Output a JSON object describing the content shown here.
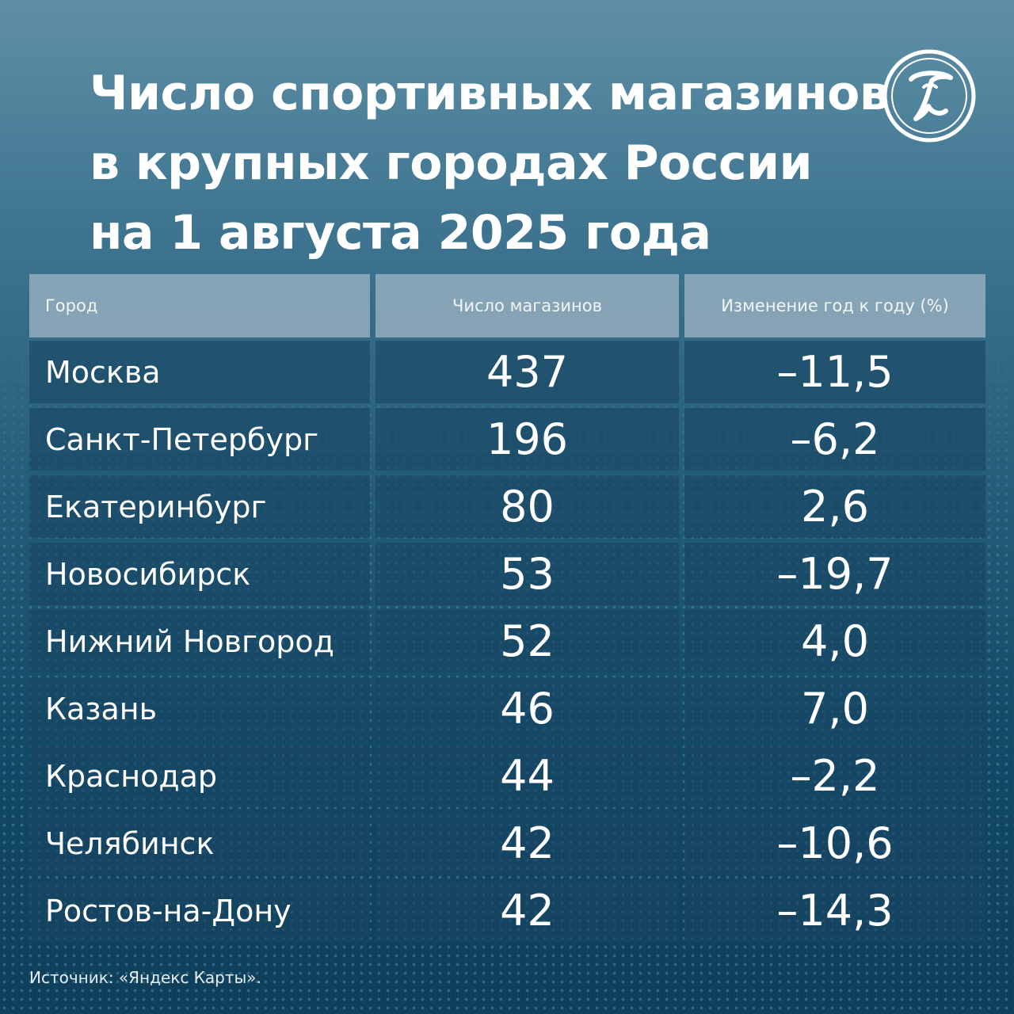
{
  "title_lines": [
    "Число спортивных магазинов",
    "в крупных городах России",
    "на 1 августа 2025 года"
  ],
  "source": "Источник: «Яндекс Карты».",
  "logo_icon": "publisher-logo-icon",
  "chart_data": {
    "type": "table",
    "title": "Число спортивных магазинов в крупных городах России на 1 августа 2025 года",
    "columns": [
      "Город",
      "Число магазинов",
      "Изменение год к году (%)"
    ],
    "rows": [
      {
        "city": "Москва",
        "count": "437",
        "change": "–11,5"
      },
      {
        "city": "Санкт-Петербург",
        "count": "196",
        "change": "–6,2"
      },
      {
        "city": "Екатеринбург",
        "count": "80",
        "change": "2,6"
      },
      {
        "city": "Новосибирск",
        "count": "53",
        "change": "–19,7"
      },
      {
        "city": "Нижний Новгород",
        "count": "52",
        "change": "4,0"
      },
      {
        "city": "Казань",
        "count": "46",
        "change": "7,0"
      },
      {
        "city": "Краснодар",
        "count": "44",
        "change": "–2,2"
      },
      {
        "city": "Челябинск",
        "count": "42",
        "change": "–10,6"
      },
      {
        "city": "Ростов-на-Дону",
        "count": "42",
        "change": "–14,3"
      }
    ]
  }
}
